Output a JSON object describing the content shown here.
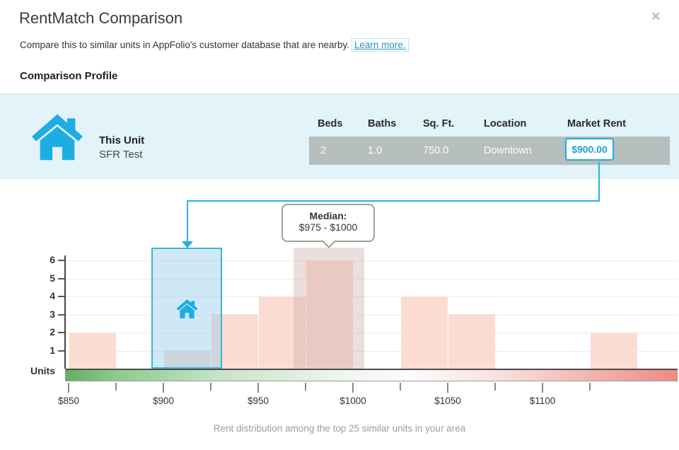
{
  "dialog": {
    "title": "RentMatch Comparison",
    "subtitle": "Compare this to similar units in AppFolio's customer database that are nearby.",
    "learn_more_label": "Learn more.",
    "close_glyph": "✕",
    "section_heading": "Comparison Profile"
  },
  "profile": {
    "unit_label": "This Unit",
    "unit_name": "SFR Test",
    "columns": [
      "Beds",
      "Baths",
      "Sq. Ft.",
      "Location",
      "Market Rent"
    ],
    "row": {
      "beds": "2",
      "baths": "1.0",
      "sqft": "750.0",
      "location": "Downtown",
      "market_rent": "$900.00"
    }
  },
  "chart_data": {
    "type": "bar",
    "ylabel": "Units",
    "caption": "Rent distribution among the top 25 similar units in your area",
    "total_units": 25,
    "bin_width": 25,
    "x_range": [
      850,
      1150
    ],
    "x_minor_step": 25,
    "x_tick_labels": [
      "$850",
      "$900",
      "$950",
      "$1000",
      "$1050",
      "$1100"
    ],
    "y_tick_labels": [
      "1",
      "2",
      "3",
      "4",
      "5",
      "6"
    ],
    "ylim": [
      0,
      6.7
    ],
    "grid": true,
    "bins": [
      {
        "start": 850,
        "end": 875,
        "count": 2
      },
      {
        "start": 900,
        "end": 925,
        "count": 1
      },
      {
        "start": 925,
        "end": 950,
        "count": 3
      },
      {
        "start": 950,
        "end": 975,
        "count": 4
      },
      {
        "start": 975,
        "end": 1000,
        "count": 6
      },
      {
        "start": 1025,
        "end": 1050,
        "count": 4
      },
      {
        "start": 1050,
        "end": 1075,
        "count": 3
      },
      {
        "start": 1125,
        "end": 1150,
        "count": 2
      }
    ],
    "highlight_bands": [
      {
        "type": "this-unit",
        "from": 900,
        "to": 925
      },
      {
        "type": "median",
        "from": 975,
        "to": 1000
      }
    ],
    "this_unit_marker": {
      "value": 900
    },
    "median_callout": {
      "label": "Median:",
      "range": "$975 - $1000"
    }
  },
  "colors": {
    "accent_blue": "#1caee3",
    "link_blue": "#2795cc",
    "bar_pink": "#fbdcd2",
    "panel_blue": "#e2f3fa",
    "row_gray": "#b6bebe",
    "gradient_green": "#5fb15f",
    "gradient_red": "#ec8b84"
  }
}
